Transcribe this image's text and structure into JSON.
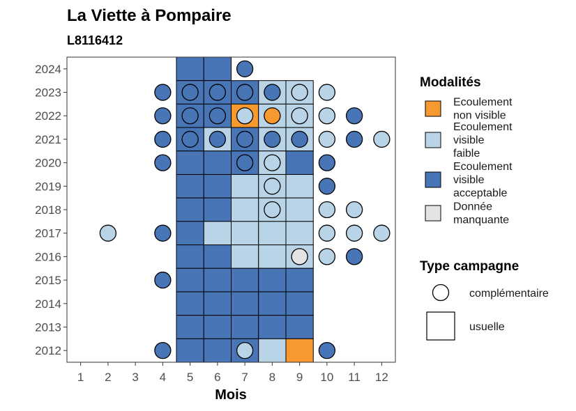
{
  "chart_data": {
    "type": "heatmap",
    "title": "La Viette à Pompaire",
    "subtitle": "L8116412",
    "xlabel": "Mois",
    "ylabel": "",
    "x_ticks": [
      1,
      2,
      3,
      4,
      5,
      6,
      7,
      8,
      9,
      10,
      11,
      12
    ],
    "y_ticks": [
      2012,
      2013,
      2014,
      2015,
      2016,
      2017,
      2018,
      2019,
      2020,
      2021,
      2022,
      2023,
      2024
    ],
    "xlim": [
      0.5,
      12.5
    ],
    "ylim": [
      2011.5,
      2024.5
    ],
    "colors": {
      "non_visible": "#f7992f",
      "faible": "#b9d4e6",
      "acceptable": "#4875b6",
      "manquante": "#e4e4e4"
    },
    "legend": {
      "fill_title": "Modalités",
      "fill_items": [
        {
          "key": "non_visible",
          "lines": [
            "Ecoulement",
            "non visible"
          ]
        },
        {
          "key": "faible",
          "lines": [
            "Ecoulement",
            "visible",
            "faible"
          ]
        },
        {
          "key": "acceptable",
          "lines": [
            "Ecoulement",
            "visible",
            "acceptable"
          ]
        },
        {
          "key": "manquante",
          "lines": [
            "Donnée",
            "manquante"
          ]
        }
      ],
      "shape_title": "Type campagne",
      "shape_items": [
        {
          "key": "circle",
          "label": "complémentaire"
        },
        {
          "key": "square",
          "label": "usuelle"
        }
      ]
    },
    "usuelle": [
      {
        "year": 2024,
        "month": 5,
        "m": "acceptable"
      },
      {
        "year": 2024,
        "month": 6,
        "m": "acceptable"
      },
      {
        "year": 2023,
        "month": 5,
        "m": "acceptable"
      },
      {
        "year": 2023,
        "month": 6,
        "m": "acceptable"
      },
      {
        "year": 2023,
        "month": 7,
        "m": "acceptable"
      },
      {
        "year": 2023,
        "month": 8,
        "m": "faible"
      },
      {
        "year": 2023,
        "month": 9,
        "m": "faible"
      },
      {
        "year": 2022,
        "month": 5,
        "m": "acceptable"
      },
      {
        "year": 2022,
        "month": 6,
        "m": "acceptable"
      },
      {
        "year": 2022,
        "month": 7,
        "m": "non_visible"
      },
      {
        "year": 2022,
        "month": 8,
        "m": "faible"
      },
      {
        "year": 2022,
        "month": 9,
        "m": "faible"
      },
      {
        "year": 2021,
        "month": 5,
        "m": "acceptable"
      },
      {
        "year": 2021,
        "month": 6,
        "m": "faible"
      },
      {
        "year": 2021,
        "month": 7,
        "m": "acceptable"
      },
      {
        "year": 2021,
        "month": 8,
        "m": "faible"
      },
      {
        "year": 2021,
        "month": 9,
        "m": "faible"
      },
      {
        "year": 2020,
        "month": 5,
        "m": "acceptable"
      },
      {
        "year": 2020,
        "month": 6,
        "m": "acceptable"
      },
      {
        "year": 2020,
        "month": 7,
        "m": "acceptable"
      },
      {
        "year": 2020,
        "month": 8,
        "m": "faible"
      },
      {
        "year": 2020,
        "month": 9,
        "m": "acceptable"
      },
      {
        "year": 2019,
        "month": 5,
        "m": "acceptable"
      },
      {
        "year": 2019,
        "month": 6,
        "m": "acceptable"
      },
      {
        "year": 2019,
        "month": 7,
        "m": "faible"
      },
      {
        "year": 2019,
        "month": 8,
        "m": "faible"
      },
      {
        "year": 2019,
        "month": 9,
        "m": "faible"
      },
      {
        "year": 2018,
        "month": 5,
        "m": "acceptable"
      },
      {
        "year": 2018,
        "month": 6,
        "m": "acceptable"
      },
      {
        "year": 2018,
        "month": 7,
        "m": "faible"
      },
      {
        "year": 2018,
        "month": 8,
        "m": "faible"
      },
      {
        "year": 2018,
        "month": 9,
        "m": "faible"
      },
      {
        "year": 2017,
        "month": 5,
        "m": "acceptable"
      },
      {
        "year": 2017,
        "month": 6,
        "m": "faible"
      },
      {
        "year": 2017,
        "month": 7,
        "m": "faible"
      },
      {
        "year": 2017,
        "month": 8,
        "m": "faible"
      },
      {
        "year": 2017,
        "month": 9,
        "m": "faible"
      },
      {
        "year": 2016,
        "month": 5,
        "m": "acceptable"
      },
      {
        "year": 2016,
        "month": 6,
        "m": "acceptable"
      },
      {
        "year": 2016,
        "month": 7,
        "m": "faible"
      },
      {
        "year": 2016,
        "month": 8,
        "m": "faible"
      },
      {
        "year": 2016,
        "month": 9,
        "m": "faible"
      },
      {
        "year": 2015,
        "month": 5,
        "m": "acceptable"
      },
      {
        "year": 2015,
        "month": 6,
        "m": "acceptable"
      },
      {
        "year": 2015,
        "month": 7,
        "m": "acceptable"
      },
      {
        "year": 2015,
        "month": 8,
        "m": "acceptable"
      },
      {
        "year": 2015,
        "month": 9,
        "m": "acceptable"
      },
      {
        "year": 2014,
        "month": 5,
        "m": "acceptable"
      },
      {
        "year": 2014,
        "month": 6,
        "m": "acceptable"
      },
      {
        "year": 2014,
        "month": 7,
        "m": "acceptable"
      },
      {
        "year": 2014,
        "month": 8,
        "m": "acceptable"
      },
      {
        "year": 2014,
        "month": 9,
        "m": "acceptable"
      },
      {
        "year": 2013,
        "month": 5,
        "m": "acceptable"
      },
      {
        "year": 2013,
        "month": 6,
        "m": "acceptable"
      },
      {
        "year": 2013,
        "month": 7,
        "m": "acceptable"
      },
      {
        "year": 2013,
        "month": 8,
        "m": "acceptable"
      },
      {
        "year": 2013,
        "month": 9,
        "m": "acceptable"
      },
      {
        "year": 2012,
        "month": 5,
        "m": "acceptable"
      },
      {
        "year": 2012,
        "month": 6,
        "m": "acceptable"
      },
      {
        "year": 2012,
        "month": 7,
        "m": "acceptable"
      },
      {
        "year": 2012,
        "month": 8,
        "m": "faible"
      },
      {
        "year": 2012,
        "month": 9,
        "m": "non_visible"
      }
    ],
    "complementaire": [
      {
        "year": 2024,
        "month": 7,
        "m": "acceptable"
      },
      {
        "year": 2023,
        "month": 4,
        "m": "acceptable"
      },
      {
        "year": 2023,
        "month": 5,
        "m": "acceptable"
      },
      {
        "year": 2023,
        "month": 6,
        "m": "acceptable"
      },
      {
        "year": 2023,
        "month": 7,
        "m": "acceptable"
      },
      {
        "year": 2023,
        "month": 8,
        "m": "acceptable"
      },
      {
        "year": 2023,
        "month": 9,
        "m": "faible"
      },
      {
        "year": 2023,
        "month": 10,
        "m": "faible"
      },
      {
        "year": 2022,
        "month": 4,
        "m": "acceptable"
      },
      {
        "year": 2022,
        "month": 5,
        "m": "acceptable"
      },
      {
        "year": 2022,
        "month": 6,
        "m": "acceptable"
      },
      {
        "year": 2022,
        "month": 7,
        "m": "faible"
      },
      {
        "year": 2022,
        "month": 8,
        "m": "non_visible"
      },
      {
        "year": 2022,
        "month": 9,
        "m": "faible"
      },
      {
        "year": 2022,
        "month": 10,
        "m": "faible"
      },
      {
        "year": 2022,
        "month": 11,
        "m": "acceptable"
      },
      {
        "year": 2021,
        "month": 4,
        "m": "acceptable"
      },
      {
        "year": 2021,
        "month": 5,
        "m": "acceptable"
      },
      {
        "year": 2021,
        "month": 6,
        "m": "acceptable"
      },
      {
        "year": 2021,
        "month": 7,
        "m": "acceptable"
      },
      {
        "year": 2021,
        "month": 8,
        "m": "acceptable"
      },
      {
        "year": 2021,
        "month": 9,
        "m": "acceptable"
      },
      {
        "year": 2021,
        "month": 10,
        "m": "faible"
      },
      {
        "year": 2021,
        "month": 11,
        "m": "acceptable"
      },
      {
        "year": 2021,
        "month": 12,
        "m": "faible"
      },
      {
        "year": 2020,
        "month": 4,
        "m": "acceptable"
      },
      {
        "year": 2020,
        "month": 7,
        "m": "acceptable"
      },
      {
        "year": 2020,
        "month": 8,
        "m": "faible"
      },
      {
        "year": 2020,
        "month": 10,
        "m": "acceptable"
      },
      {
        "year": 2019,
        "month": 8,
        "m": "faible"
      },
      {
        "year": 2019,
        "month": 10,
        "m": "acceptable"
      },
      {
        "year": 2018,
        "month": 8,
        "m": "faible"
      },
      {
        "year": 2018,
        "month": 10,
        "m": "faible"
      },
      {
        "year": 2018,
        "month": 11,
        "m": "faible"
      },
      {
        "year": 2017,
        "month": 2,
        "m": "faible"
      },
      {
        "year": 2017,
        "month": 4,
        "m": "acceptable"
      },
      {
        "year": 2017,
        "month": 10,
        "m": "faible"
      },
      {
        "year": 2017,
        "month": 11,
        "m": "faible"
      },
      {
        "year": 2017,
        "month": 12,
        "m": "faible"
      },
      {
        "year": 2016,
        "month": 9,
        "m": "manquante"
      },
      {
        "year": 2016,
        "month": 10,
        "m": "faible"
      },
      {
        "year": 2016,
        "month": 11,
        "m": "acceptable"
      },
      {
        "year": 2015,
        "month": 4,
        "m": "acceptable"
      },
      {
        "year": 2012,
        "month": 4,
        "m": "acceptable"
      },
      {
        "year": 2012,
        "month": 7,
        "m": "faible"
      },
      {
        "year": 2012,
        "month": 10,
        "m": "acceptable"
      }
    ]
  }
}
